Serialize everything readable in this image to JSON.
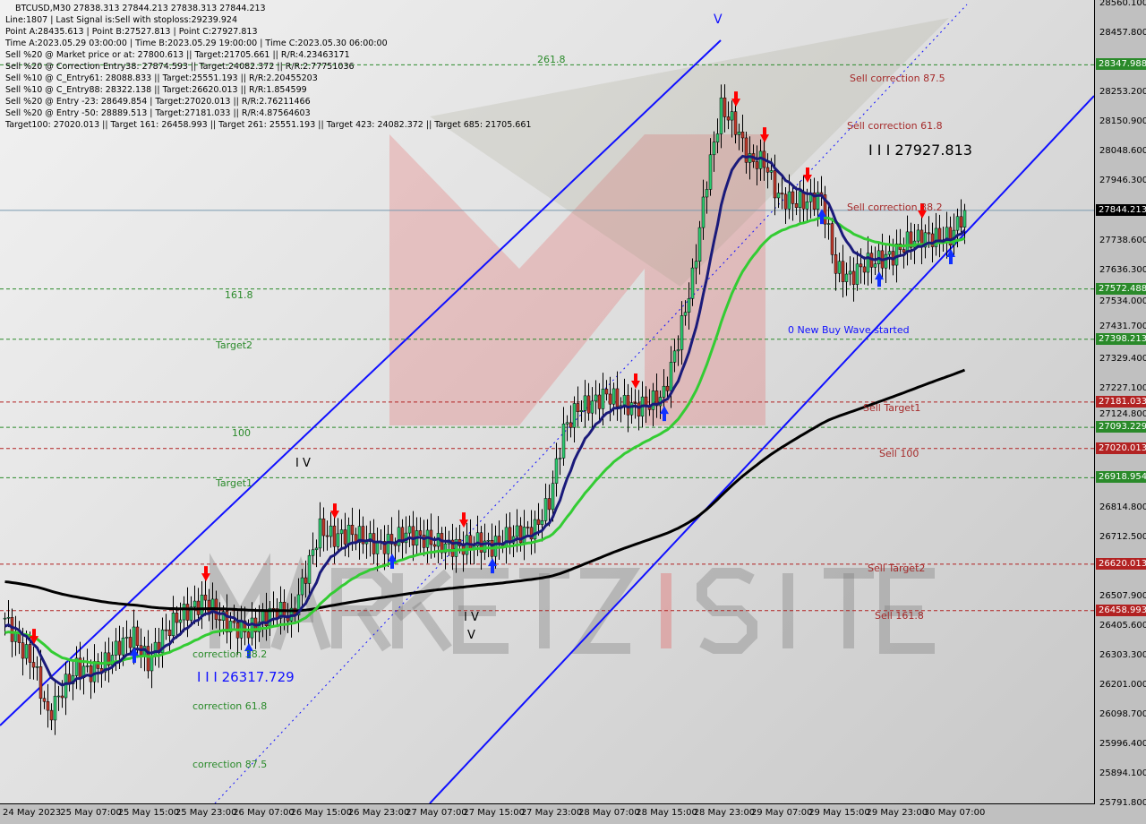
{
  "header": {
    "symbol_line": "BTCUSD,M30  27838.313 27844.213 27838.313 27844.213",
    "lines": [
      "Line:1807 | Last Signal is:Sell with stoploss:29239.924",
      "Point A:28435.613 | Point B:27527.813 | Point C:27927.813",
      "Time A:2023.05.29 03:00:00 | Time B:2023.05.29 19:00:00 | Time C:2023.05.30 06:00:00",
      "Sell %20 @ Market price or at: 27800.613 || Target:21705.661 || R/R:4.23463171",
      "Sell %20 @ Correction Entry38: 27874.593 || Target:24082.372 || R/R:2.77751036",
      "Sell %10 @ C_Entry61: 28088.833 || Target:25551.193 || R/R:2.20455203",
      "Sell %10 @ C_Entry88: 28322.138 || Target:26620.013 || R/R:1.854599",
      "Sell %20 @ Entry -23: 28649.854 | Target:27020.013 || R/R:2.76211466",
      "Sell %20 @ Entry -50: 28889.513 | Target:27181.033 || R/R:4.87564603",
      "Target100: 27020.013 || Target 161: 26458.993 || Target 261: 25551.193 || Target 423: 24082.372 || Target 685: 21705.661"
    ]
  },
  "watermark": {
    "logo_text": "MARKETZ SITE"
  },
  "chart_data": {
    "type": "candlestick",
    "symbol": "BTCUSD",
    "timeframe": "M30",
    "ylim": [
      25791.8,
      28560.1
    ],
    "current_price": 27844.213,
    "y_ticks": [
      28560.1,
      28457.8,
      28253.2,
      28150.9,
      28048.6,
      27946.3,
      27738.6,
      27636.3,
      27534.0,
      27431.7,
      27329.4,
      27227.1,
      27124.8,
      26814.8,
      26712.5,
      26507.9,
      26405.6,
      26303.3,
      26201.0,
      26098.7,
      25996.4,
      25894.1,
      25791.8
    ],
    "x_ticks": [
      "24 May 2023",
      "25 May 07:00",
      "25 May 15:00",
      "25 May 23:00",
      "26 May 07:00",
      "26 May 15:00",
      "26 May 23:00",
      "27 May 07:00",
      "27 May 15:00",
      "27 May 23:00",
      "28 May 07:00",
      "28 May 15:00",
      "28 May 23:00",
      "29 May 07:00",
      "29 May 15:00",
      "29 May 23:00",
      "30 May 07:00"
    ],
    "close_2h": [
      26433,
      26340,
      26278,
      26092,
      26185,
      26263,
      26247,
      26278,
      26340,
      26371,
      26278,
      26371,
      26433,
      26464,
      26495,
      26433,
      26402,
      26387,
      26433,
      26464,
      26433,
      26588,
      26743,
      26712,
      26728,
      26712,
      26681,
      26697,
      26728,
      26712,
      26697,
      26681,
      26681,
      26697,
      26681,
      26712,
      26728,
      26743,
      26836,
      27084,
      27162,
      27177,
      27208,
      27177,
      27162,
      27177,
      27208,
      27394,
      27611,
      27952,
      28200,
      28138,
      28014,
      28014,
      27890,
      27875,
      27875,
      27890,
      27642,
      27611,
      27658,
      27673,
      27689,
      27735,
      27751,
      27751,
      27751,
      27844.213
    ],
    "levels": [
      {
        "price": 28347.988,
        "label": "28347.988",
        "color": "#2a8a2a"
      },
      {
        "price": 27572.488,
        "label": "27572.488",
        "color": "#2a8a2a"
      },
      {
        "price": 27398.213,
        "label": "27398.213",
        "color": "#2a8a2a"
      },
      {
        "price": 27181.033,
        "label": "27181.033",
        "color": "#b22222"
      },
      {
        "price": 27093.229,
        "label": "27093.229",
        "color": "#2a8a2a"
      },
      {
        "price": 27020.013,
        "label": "27020.013",
        "color": "#b22222"
      },
      {
        "price": 26918.954,
        "label": "26918.954",
        "color": "#2a8a2a"
      },
      {
        "price": 26620.013,
        "label": "26620.013",
        "color": "#b22222"
      },
      {
        "price": 26458.993,
        "label": "26458.993",
        "color": "#b22222"
      }
    ],
    "current_tag": {
      "label": "27844.213",
      "color": "#000000"
    },
    "annotations": {
      "fib_261": "261.8",
      "fib_161": "161.8",
      "target2": "Target2",
      "fib_100": "100",
      "target1": "Target1",
      "corr38": "correction 38.2",
      "wave_low": "I I I 26317.729",
      "corr61": "correction 61.8",
      "corr87": "correction 87.5",
      "sell_corr87": "Sell correction 87.5",
      "sell_corr61": "Sell correction 61.8",
      "wave_high": "I I I 27927.813",
      "sell_corr38": "Sell correction 38.2",
      "new_wave": "0 New Buy Wave started",
      "sell_target1": "Sell Target1",
      "sell_100": "Sell 100",
      "sell_target2": "Sell Target2",
      "sell_161": "Sell 161.8",
      "wave_v_top": "V",
      "wave_iv_a": "I V",
      "wave_iv_b": "I V",
      "wave_v_b": "V"
    },
    "signals": [
      {
        "i": 2,
        "type": "sell"
      },
      {
        "i": 9,
        "type": "buy"
      },
      {
        "i": 14,
        "type": "sell"
      },
      {
        "i": 17,
        "type": "buy"
      },
      {
        "i": 23,
        "type": "sell"
      },
      {
        "i": 27,
        "type": "buy"
      },
      {
        "i": 32,
        "type": "sell"
      },
      {
        "i": 34,
        "type": "buy"
      },
      {
        "i": 44,
        "type": "sell"
      },
      {
        "i": 46,
        "type": "buy"
      },
      {
        "i": 51,
        "type": "sell"
      },
      {
        "i": 53,
        "type": "sell"
      },
      {
        "i": 56,
        "type": "sell"
      },
      {
        "i": 57,
        "type": "buy"
      },
      {
        "i": 61,
        "type": "buy"
      },
      {
        "i": 64,
        "type": "sell"
      },
      {
        "i": 66,
        "type": "buy"
      }
    ],
    "colors": {
      "bull": "#2ecc71",
      "bear": "#c0392b",
      "fast_ma": "#1a1a7a",
      "mid_ma": "#33cc33",
      "slow_ma": "#000000",
      "channel": "#1010ff"
    }
  }
}
